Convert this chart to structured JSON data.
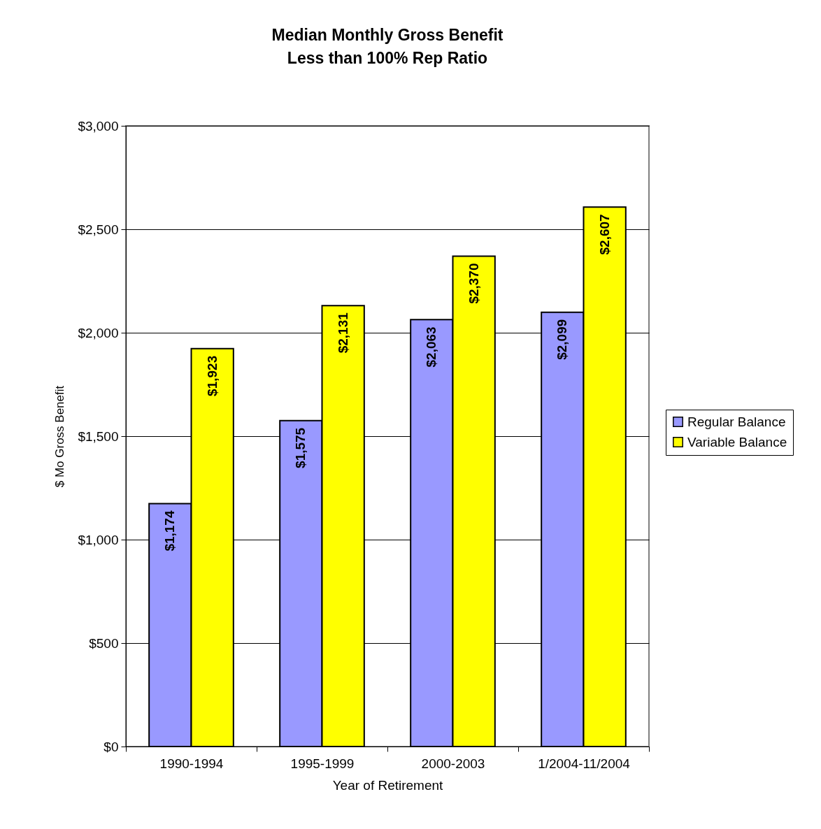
{
  "chart_data": {
    "type": "bar",
    "title": [
      "Median Monthly Gross Benefit",
      "Less than 100% Rep Ratio"
    ],
    "xlabel": "Year of Retirement",
    "ylabel": "$ Mo Gross Benefit",
    "categories": [
      "1990-1994",
      "1995-1999",
      "2000-2003",
      "1/2004-11/2004"
    ],
    "series": [
      {
        "name": "Regular Balance",
        "color": "#9999ff",
        "values": [
          1174,
          1575,
          2063,
          2099
        ],
        "value_labels": [
          "$1,174",
          "$1,575",
          "$2,063",
          "$2,099"
        ]
      },
      {
        "name": "Variable Balance",
        "color": "#ffff00",
        "values": [
          1923,
          2131,
          2370,
          2607
        ],
        "value_labels": [
          "$1,923",
          "$2,131",
          "$2,370",
          "$2,607"
        ]
      }
    ],
    "ylim": [
      0,
      3000
    ],
    "yticks": [
      {
        "value": 0,
        "label": "$0"
      },
      {
        "value": 500,
        "label": "$500"
      },
      {
        "value": 1000,
        "label": "$1,000"
      },
      {
        "value": 1500,
        "label": "$1,500"
      },
      {
        "value": 2000,
        "label": "$2,000"
      },
      {
        "value": 2500,
        "label": "$2,500"
      },
      {
        "value": 3000,
        "label": "$3,000"
      }
    ],
    "grid": "y",
    "legend": "right"
  }
}
